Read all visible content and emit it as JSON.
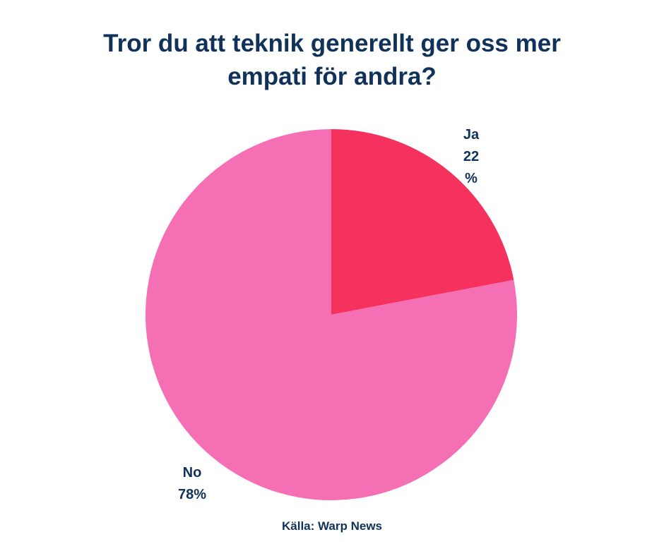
{
  "title_lines": [
    "Tror du att teknik generellt ger oss mer",
    "empati för andra?"
  ],
  "source": "Källa:  Warp News",
  "colors": {
    "ja": "#f5325e",
    "no": "#f56fb4",
    "text": "#10325a"
  },
  "chart_data": {
    "type": "pie",
    "title": "Tror du att teknik generellt ger oss mer empati för andra?",
    "slices": [
      {
        "label": "Ja",
        "value": 22,
        "label_lines": [
          "Ja",
          "22",
          "%"
        ]
      },
      {
        "label": "No",
        "value": 78,
        "label_lines": [
          "No",
          "78%"
        ]
      }
    ],
    "start_angle": "12 o'clock, clockwise",
    "legend": "none"
  }
}
